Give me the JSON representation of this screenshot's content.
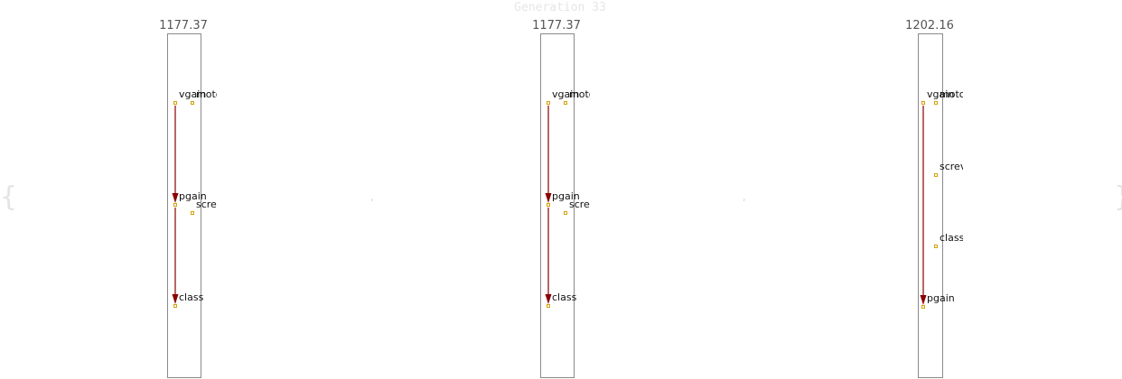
{
  "title": "Generation 33",
  "bracket_left": "{",
  "bracket_right": "}",
  "separator": ",",
  "colors": {
    "edge": "#8b0000",
    "node_outline": "#d4a20a",
    "panel_border": "#8a8a8a"
  },
  "panels": [
    {
      "score": "1177.37",
      "nodes": [
        {
          "id": "vgain",
          "label": "vgain"
        },
        {
          "id": "motor",
          "label": "moto"
        },
        {
          "id": "pgain",
          "label": "pgain"
        },
        {
          "id": "screw",
          "label": "scre"
        },
        {
          "id": "class",
          "label": "class"
        }
      ],
      "edges": [
        {
          "from": "vgain",
          "to": "pgain"
        },
        {
          "from": "pgain",
          "to": "class"
        }
      ]
    },
    {
      "score": "1177.37",
      "nodes": [
        {
          "id": "vgain",
          "label": "vgain"
        },
        {
          "id": "motor",
          "label": "moto"
        },
        {
          "id": "pgain",
          "label": "pgain"
        },
        {
          "id": "screw",
          "label": "scre"
        },
        {
          "id": "class",
          "label": "class"
        }
      ],
      "edges": [
        {
          "from": "vgain",
          "to": "pgain"
        },
        {
          "from": "pgain",
          "to": "class"
        }
      ]
    },
    {
      "score": "1202.16",
      "nodes": [
        {
          "id": "vgain",
          "label": "vgain"
        },
        {
          "id": "motor",
          "label": "moto"
        },
        {
          "id": "screw",
          "label": "screv"
        },
        {
          "id": "class",
          "label": "class"
        },
        {
          "id": "pgain",
          "label": "pgain"
        }
      ],
      "edges": [
        {
          "from": "vgain",
          "to": "pgain"
        }
      ]
    }
  ]
}
